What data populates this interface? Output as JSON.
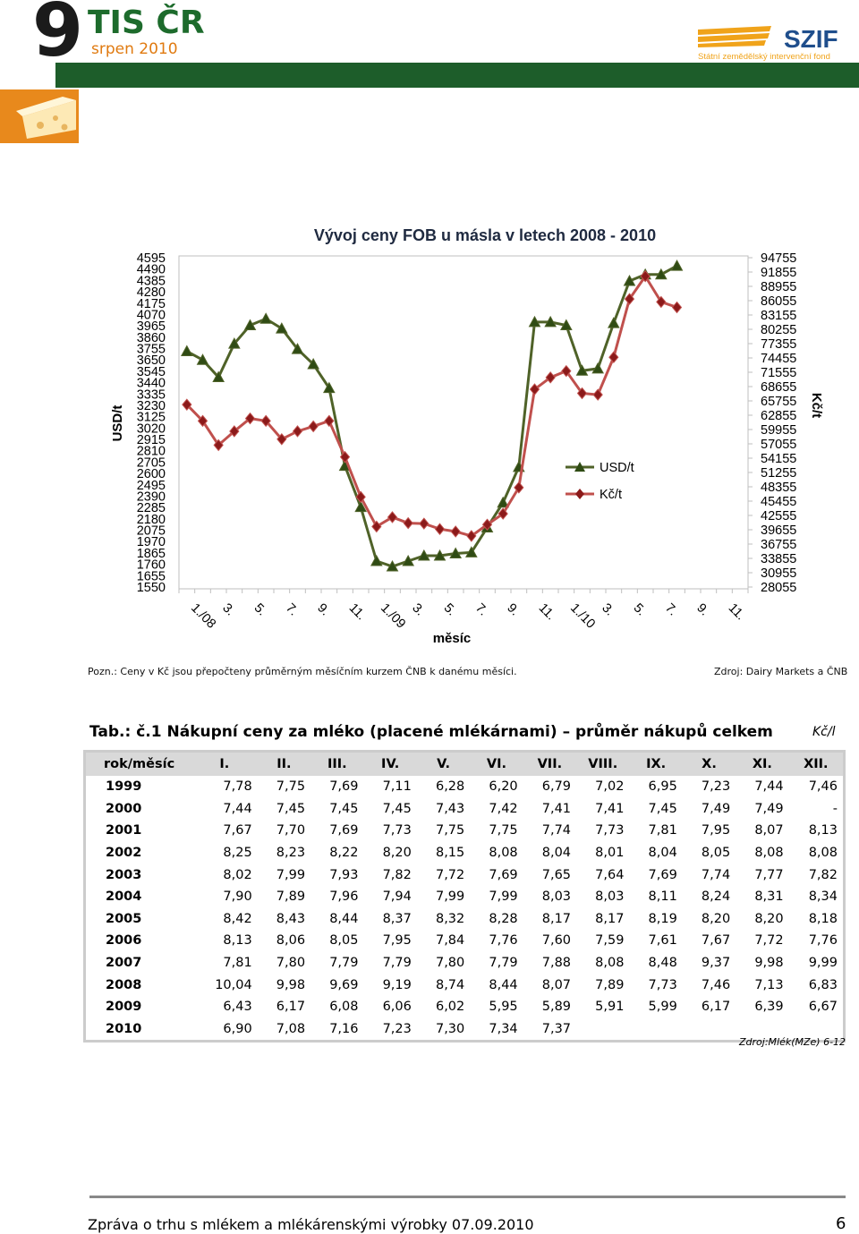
{
  "header": {
    "issue_number": "9",
    "publication": "TIS ČR",
    "issue_date": "srpen 2010",
    "logo_text": "SZIF",
    "logo_subtitle": "Státní zemědělský intervenční fond",
    "accent_green": "#1d5d2a",
    "accent_orange": "#e8891c"
  },
  "chart_data": {
    "type": "line",
    "title": "Vývoj ceny FOB u másla v letech 2008 - 2010",
    "xlabel": "měsíc",
    "ylabel_left": "USD/t",
    "ylabel_right": "Kč/t",
    "left_ticks": [
      "4595",
      "4490",
      "4385",
      "4280",
      "4175",
      "4070",
      "3965",
      "3860",
      "3755",
      "3650",
      "3545",
      "3440",
      "3335",
      "3230",
      "3125",
      "3020",
      "2915",
      "2810",
      "2705",
      "2600",
      "2495",
      "2390",
      "2285",
      "2180",
      "2075",
      "1970",
      "1865",
      "1760",
      "1655",
      "1550"
    ],
    "right_ticks": [
      "94755",
      "91855",
      "88955",
      "86055",
      "83155",
      "80255",
      "77355",
      "74455",
      "71555",
      "68655",
      "65755",
      "62855",
      "59955",
      "57055",
      "54155",
      "51255",
      "48355",
      "45455",
      "42555",
      "39655",
      "36755",
      "33855",
      "30955",
      "28055"
    ],
    "ylim_left": [
      1550,
      4595
    ],
    "ylim_right": [
      28055,
      94755
    ],
    "x_tick_labels": [
      "1./08",
      "3.",
      "5.",
      "7.",
      "9.",
      "11.",
      "1./09",
      "3.",
      "5.",
      "7.",
      "9.",
      "11.",
      "1./10",
      "3.",
      "5.",
      "7.",
      "9.",
      "11."
    ],
    "x_months": 36,
    "legend_position": "center-right",
    "series": [
      {
        "name": "USD/t",
        "axis": "left",
        "color": "#4f6228",
        "values": [
          3730,
          3650,
          3490,
          3800,
          3970,
          4030,
          3940,
          3750,
          3610,
          3390,
          2670,
          2290,
          1790,
          1740,
          1790,
          1840,
          1840,
          1860,
          1870,
          2100,
          2330,
          2660,
          4000,
          4000,
          3970,
          3550,
          3570,
          3990,
          4380,
          4440,
          4440,
          4520
        ]
      },
      {
        "name": "Kč/t",
        "axis": "right",
        "color": "#c0504d",
        "values": [
          65000,
          61700,
          56800,
          59600,
          62200,
          61700,
          58000,
          59600,
          60600,
          61700,
          54400,
          46300,
          40300,
          42200,
          41000,
          40900,
          39800,
          39300,
          38400,
          40700,
          42900,
          48200,
          68100,
          70500,
          71800,
          67300,
          67000,
          74600,
          86400,
          91000,
          85800,
          84700
        ]
      }
    ]
  },
  "notes": {
    "left": "Pozn.: Ceny v Kč jsou přepočteny průměrným měsíčním kurzem ČNB k danému měsíci.",
    "right": "Zdroj: Dairy Markets a ČNB"
  },
  "table": {
    "title": "Tab.: č.1 Nákupní ceny za mléko (placené mlékárnami) – průměr nákupů celkem",
    "unit": "Kč/l",
    "header": [
      "rok/měsíc",
      "I.",
      "II.",
      "III.",
      "IV.",
      "V.",
      "VI.",
      "VII.",
      "VIII.",
      "IX.",
      "X.",
      "XI.",
      "XII."
    ],
    "rows": [
      [
        "1999",
        "7,78",
        "7,75",
        "7,69",
        "7,11",
        "6,28",
        "6,20",
        "6,79",
        "7,02",
        "6,95",
        "7,23",
        "7,44",
        "7,46"
      ],
      [
        "2000",
        "7,44",
        "7,45",
        "7,45",
        "7,45",
        "7,43",
        "7,42",
        "7,41",
        "7,41",
        "7,45",
        "7,49",
        "7,49",
        "-"
      ],
      [
        "2001",
        "7,67",
        "7,70",
        "7,69",
        "7,73",
        "7,75",
        "7,75",
        "7,74",
        "7,73",
        "7,81",
        "7,95",
        "8,07",
        "8,13"
      ],
      [
        "2002",
        "8,25",
        "8,23",
        "8,22",
        "8,20",
        "8,15",
        "8,08",
        "8,04",
        "8,01",
        "8,04",
        "8,05",
        "8,08",
        "8,08"
      ],
      [
        "2003",
        "8,02",
        "7,99",
        "7,93",
        "7,82",
        "7,72",
        "7,69",
        "7,65",
        "7,64",
        "7,69",
        "7,74",
        "7,77",
        "7,82"
      ],
      [
        "2004",
        "7,90",
        "7,89",
        "7,96",
        "7,94",
        "7,99",
        "7,99",
        "8,03",
        "8,03",
        "8,11",
        "8,24",
        "8,31",
        "8,34"
      ],
      [
        "2005",
        "8,42",
        "8,43",
        "8,44",
        "8,37",
        "8,32",
        "8,28",
        "8,17",
        "8,17",
        "8,19",
        "8,20",
        "8,20",
        "8,18"
      ],
      [
        "2006",
        "8,13",
        "8,06",
        "8,05",
        "7,95",
        "7,84",
        "7,76",
        "7,60",
        "7,59",
        "7,61",
        "7,67",
        "7,72",
        "7,76"
      ],
      [
        "2007",
        "7,81",
        "7,80",
        "7,79",
        "7,79",
        "7,80",
        "7,79",
        "7,88",
        "8,08",
        "8,48",
        "9,37",
        "9,98",
        "9,99"
      ],
      [
        "2008",
        "10,04",
        "9,98",
        "9,69",
        "9,19",
        "8,74",
        "8,44",
        "8,07",
        "7,89",
        "7,73",
        "7,46",
        "7,13",
        "6,83"
      ],
      [
        "2009",
        "6,43",
        "6,17",
        "6,08",
        "6,06",
        "6,02",
        "5,95",
        "5,89",
        "5,91",
        "5,99",
        "6,17",
        "6,39",
        "6,67"
      ],
      [
        "2010",
        "6,90",
        "7,08",
        "7,16",
        "7,23",
        "7,30",
        "7,34",
        "7,37",
        "",
        "",
        "",
        "",
        ""
      ]
    ],
    "source": "Zdroj:Mlék(MZe) 6-12"
  },
  "footer": {
    "text": "Zpráva o trhu s mlékem a mlékárenskými výrobky 07.09.2010",
    "page": "6"
  }
}
